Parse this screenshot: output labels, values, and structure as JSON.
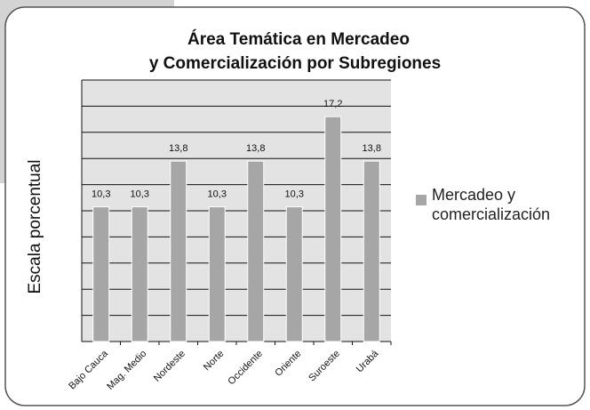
{
  "chart_data": {
    "type": "bar",
    "title": "Área Temática en Mercadeo",
    "subtitle": "y Comercialización  por Subregiones",
    "y_axis_label": "Escala porcentual",
    "categories": [
      "Bajo Cauca",
      "Mag. Medio",
      "Nordeste",
      "Norte",
      "Occidente",
      "Oriente",
      "Suroeste",
      "Urabá"
    ],
    "series": [
      {
        "name": "Mercadeo y comercialización",
        "color": "#a6a6a6",
        "values": [
          10.3,
          10.3,
          13.8,
          10.3,
          13.8,
          10.3,
          17.2,
          13.8
        ],
        "value_labels": [
          "10,3",
          "10,3",
          "13,8",
          "10,3",
          "13,8",
          "10,3",
          "17,2",
          "13,8"
        ]
      }
    ],
    "ylim": [
      0,
      20
    ],
    "yticks": [
      0,
      2,
      4,
      6,
      8,
      10,
      12,
      14,
      16,
      18,
      20
    ],
    "grid": true,
    "legend": "right"
  }
}
